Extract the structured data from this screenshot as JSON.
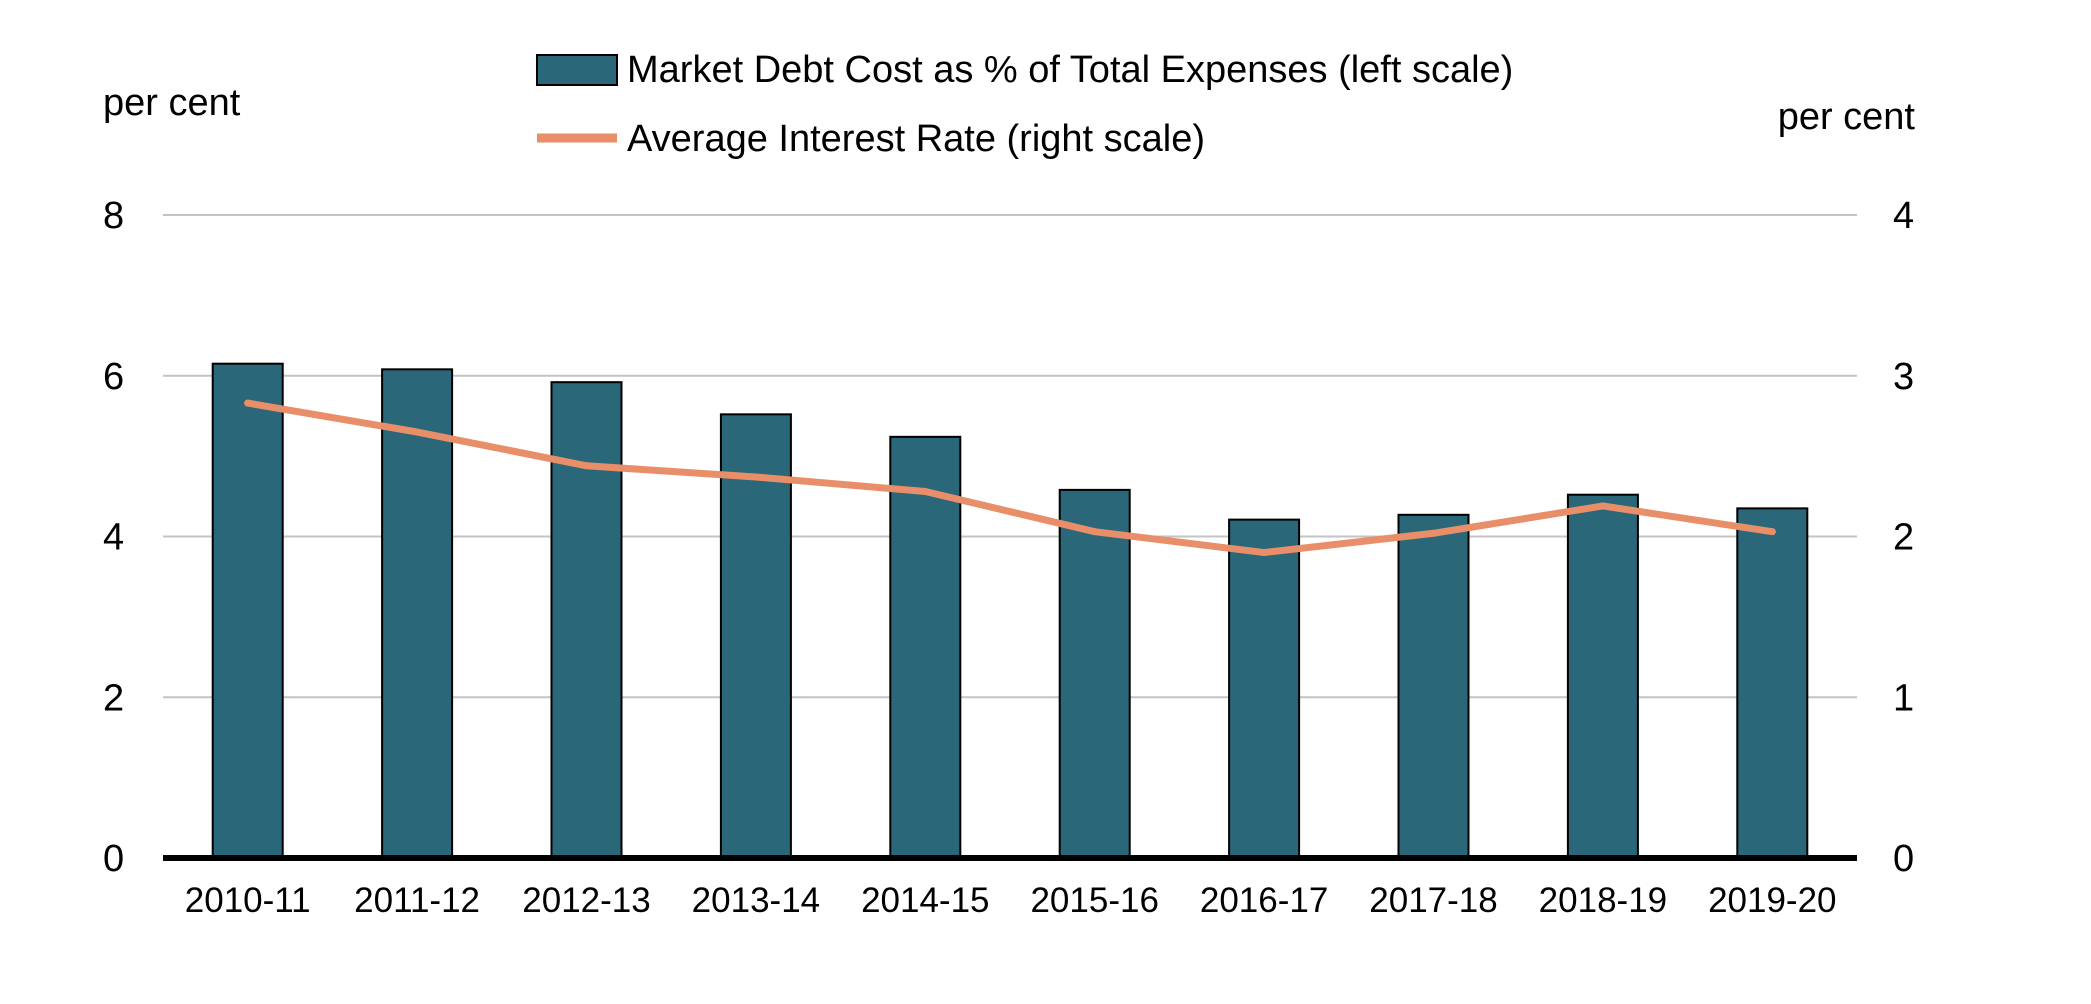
{
  "chart_data": {
    "type": "bar",
    "categories": [
      "2010-11",
      "2011-12",
      "2012-13",
      "2013-14",
      "2014-15",
      "2015-16",
      "2016-17",
      "2017-18",
      "2018-19",
      "2019-20"
    ],
    "series": [
      {
        "name": "Market Debt Cost as % of Total Expenses (left scale)",
        "type": "bar",
        "axis": "left",
        "color": "#2a6778",
        "values": [
          6.15,
          6.08,
          5.92,
          5.52,
          5.24,
          4.58,
          4.21,
          4.27,
          4.52,
          4.35
        ]
      },
      {
        "name": "Average Interest Rate (right scale)",
        "type": "line",
        "axis": "right",
        "color": "#e88e69",
        "values": [
          2.83,
          2.65,
          2.44,
          2.37,
          2.28,
          2.03,
          1.9,
          2.02,
          2.19,
          2.03
        ]
      }
    ],
    "y_left": {
      "label": "per cent",
      "range": [
        0,
        8
      ],
      "ticks": [
        0,
        2,
        4,
        6,
        8
      ]
    },
    "y_right": {
      "label": "per cent",
      "range": [
        0,
        4
      ],
      "ticks": [
        0,
        1,
        2,
        3,
        4
      ]
    },
    "grid": true,
    "legend_position": "top-center"
  }
}
